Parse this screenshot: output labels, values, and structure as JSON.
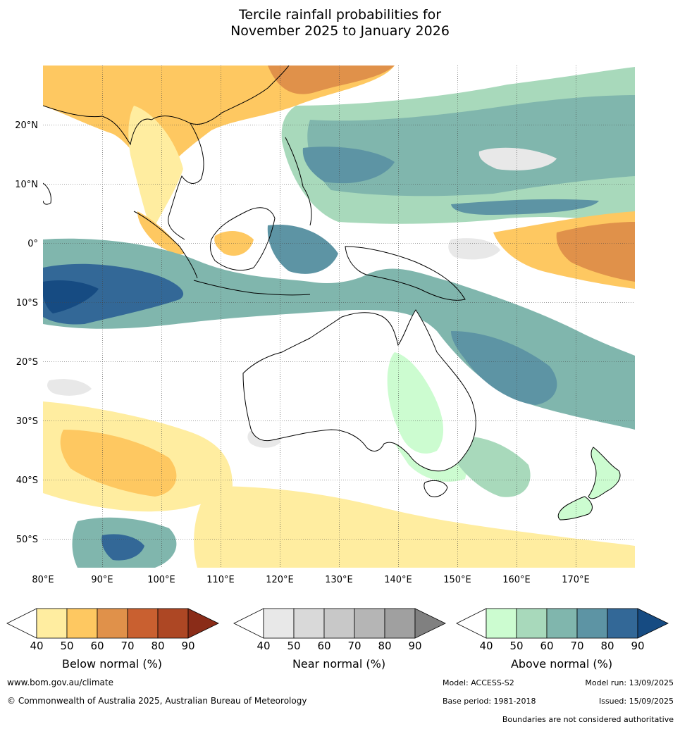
{
  "title": {
    "line1": "Tercile rainfall probabilities for",
    "line2": "November 2025 to January 2026"
  },
  "map": {
    "lat_labels": [
      "20°N",
      "10°N",
      "0°",
      "10°S",
      "20°S",
      "30°S",
      "40°S",
      "50°S"
    ],
    "lon_labels": [
      "80°E",
      "90°E",
      "100°E",
      "110°E",
      "120°E",
      "130°E",
      "140°E",
      "150°E",
      "160°E",
      "170°E"
    ]
  },
  "colorbars": [
    {
      "name": "Below normal (%)",
      "ticks": [
        "40",
        "50",
        "60",
        "70",
        "80",
        "90"
      ],
      "colors": [
        "#ffeda0",
        "#fec861",
        "#e0914a",
        "#c96030",
        "#ad4724",
        "#8a2c18"
      ]
    },
    {
      "name": "Near normal (%)",
      "ticks": [
        "40",
        "50",
        "60",
        "70",
        "80",
        "90"
      ],
      "colors": [
        "#e8e8e8",
        "#d9d9d9",
        "#c8c8c8",
        "#b5b5b5",
        "#a0a0a0",
        "#808080"
      ]
    },
    {
      "name": "Above normal (%)",
      "ticks": [
        "40",
        "50",
        "60",
        "70",
        "80",
        "90"
      ],
      "colors": [
        "#ccfcd0",
        "#a8d9bb",
        "#80b6ad",
        "#5d94a4",
        "#336897",
        "#164b82"
      ]
    }
  ],
  "footer": {
    "website": "www.bom.gov.au/climate",
    "copyright": "© Commonwealth of Australia 2025, Australian Bureau of Meteorology",
    "model": "Model: ACCESS-S2",
    "model_run": "Model run: 13/09/2025",
    "base_period": "Base period: 1981-2018",
    "issued": "Issued: 15/09/2025",
    "disclaimer": "Boundaries are not considered authoritative"
  }
}
